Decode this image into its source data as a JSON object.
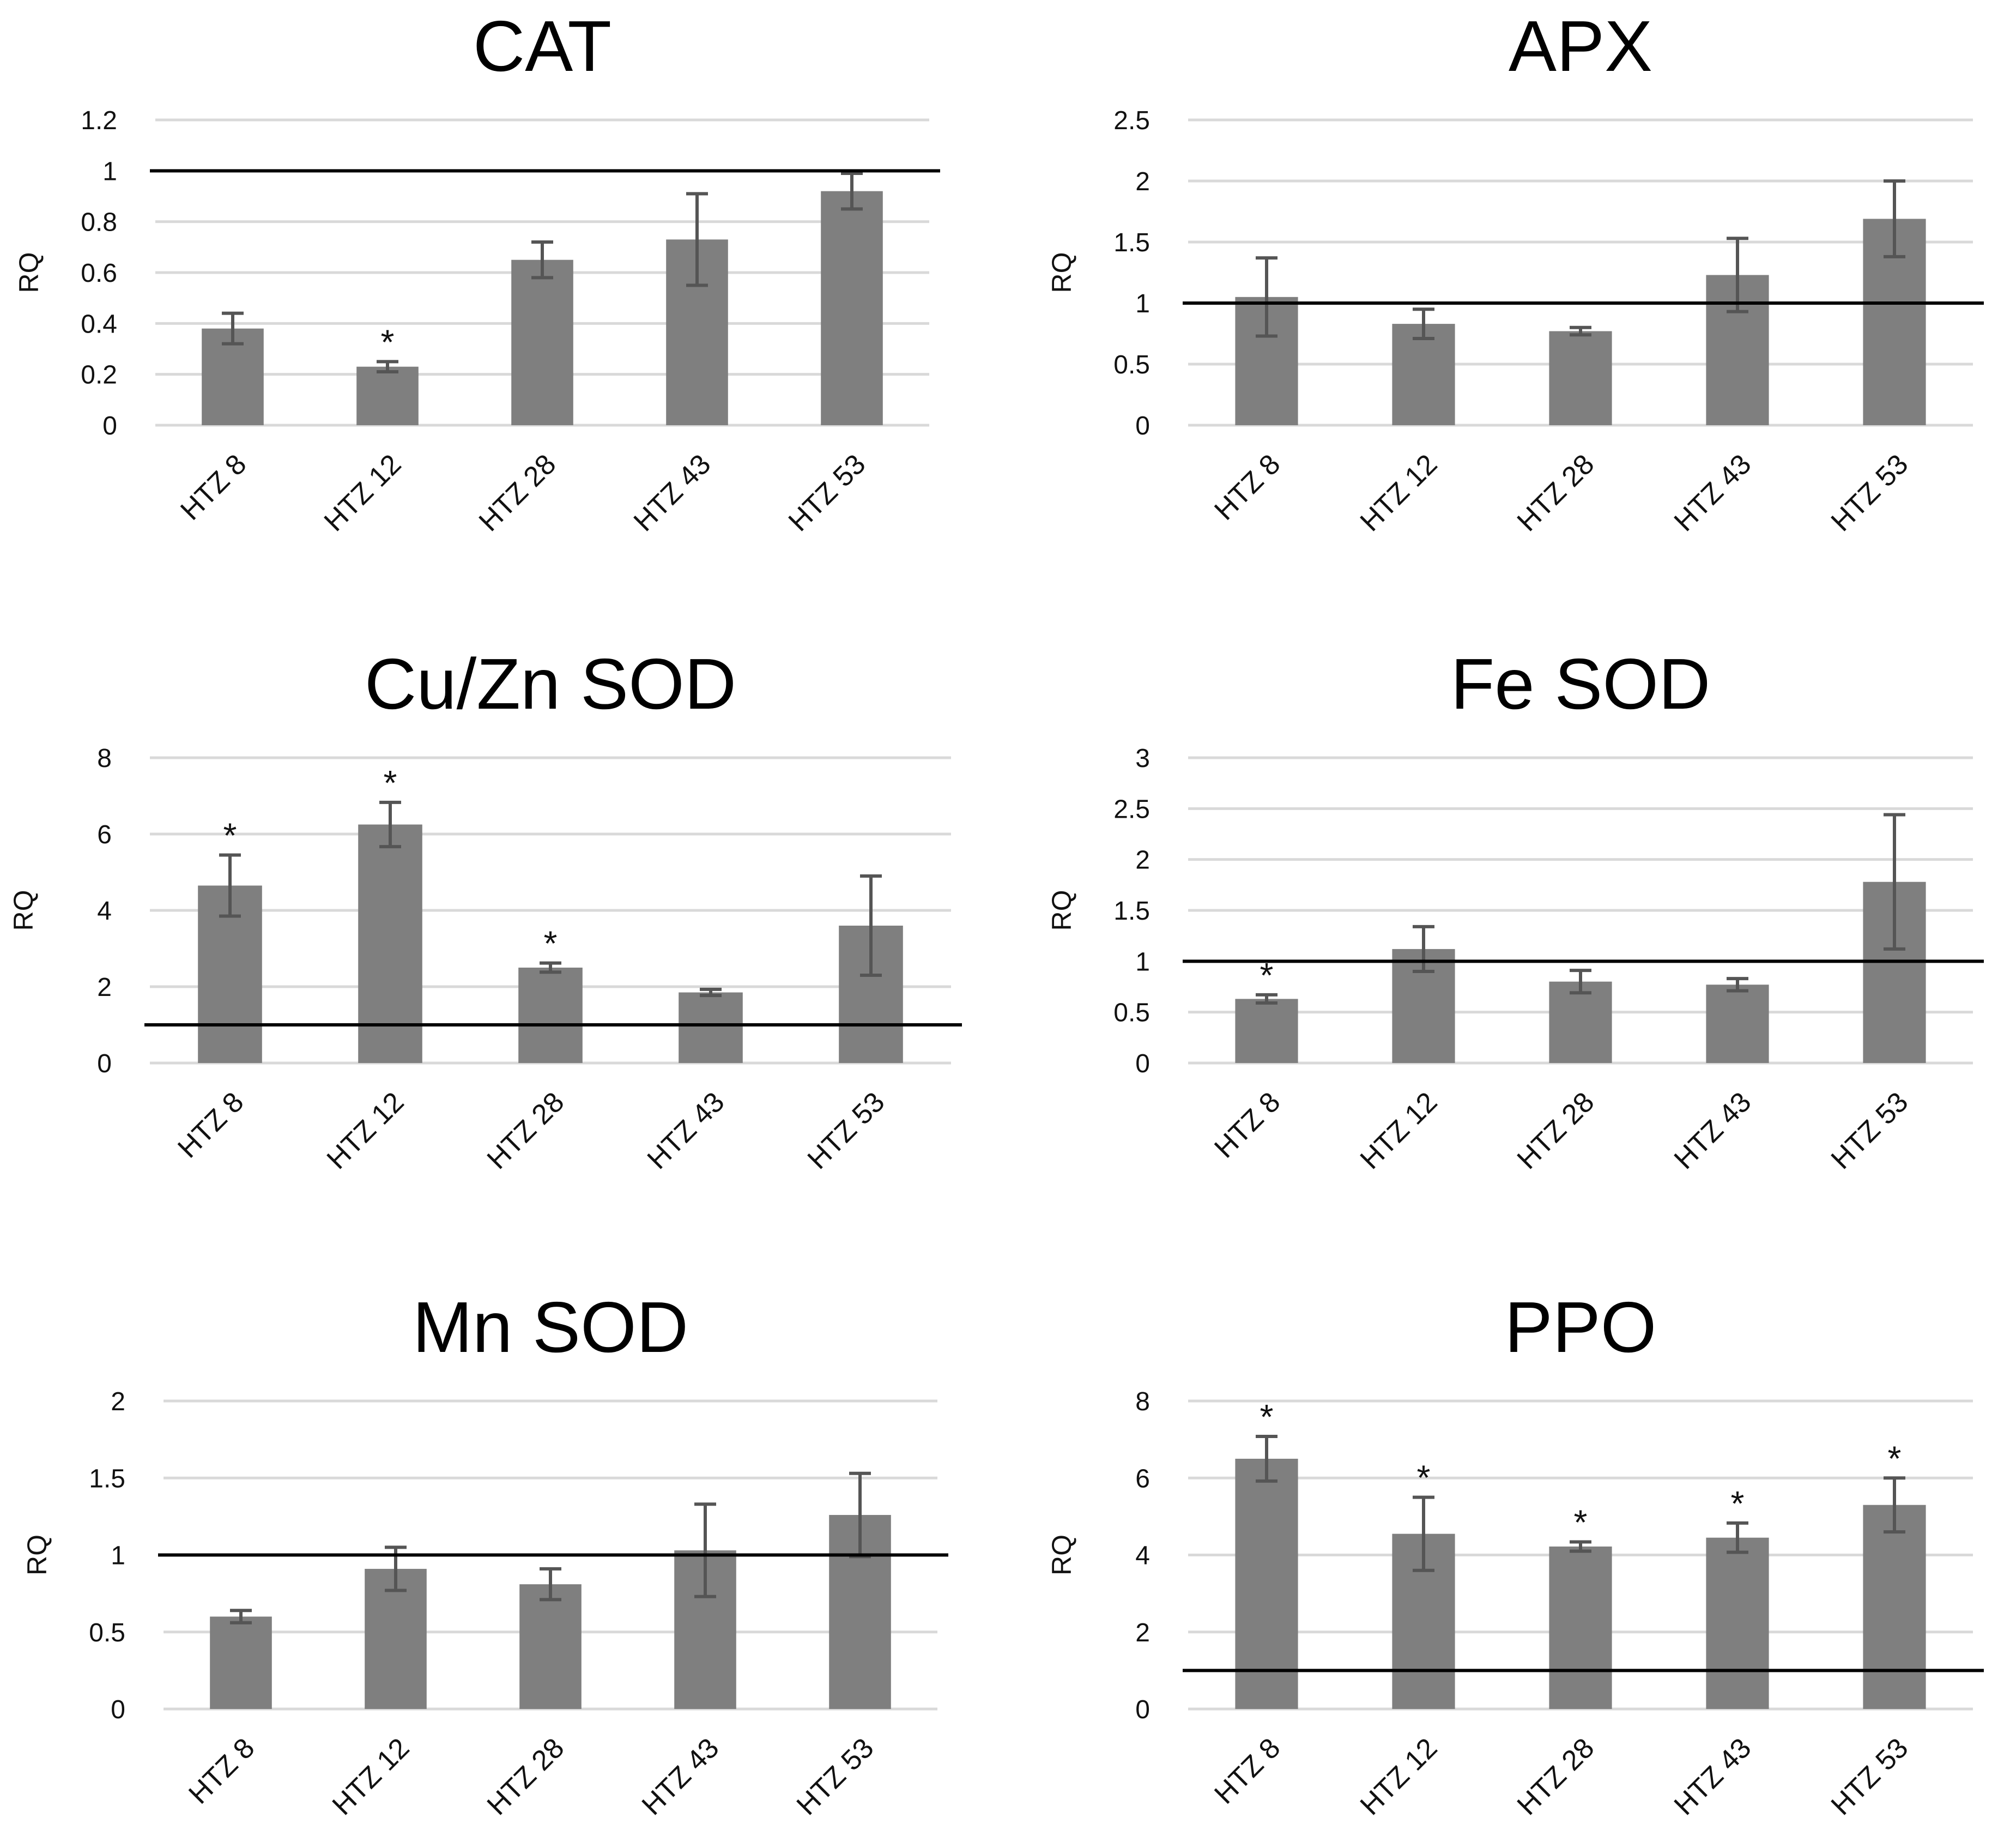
{
  "colors": {
    "bar": "#7f7f7f",
    "error": "#555555",
    "grid": "#d9d9d9",
    "ref": "#000000"
  },
  "chart_data": [
    {
      "type": "bar",
      "title": "CAT",
      "ylabel": "RQ",
      "xlabel": "",
      "categories": [
        "HTZ 8",
        "HTZ 12",
        "HTZ 28",
        "HTZ 43",
        "HTZ 53"
      ],
      "values": [
        0.38,
        0.23,
        0.65,
        0.73,
        0.92
      ],
      "errors": [
        0.06,
        0.02,
        0.07,
        0.18,
        0.07
      ],
      "significant": [
        false,
        true,
        false,
        false,
        false
      ],
      "ylim": [
        0,
        1.2
      ],
      "yticks": [
        0,
        0.2,
        0.4,
        0.6,
        0.8,
        1,
        1.2
      ],
      "ytick_labels": [
        "0",
        "0.2",
        "0.4",
        "0.6",
        "0.8",
        "1",
        "1.2"
      ],
      "reference_line": 1
    },
    {
      "type": "bar",
      "title": "APX",
      "ylabel": "RQ",
      "xlabel": "",
      "categories": [
        "HTZ 8",
        "HTZ 12",
        "HTZ 28",
        "HTZ 43",
        "HTZ 53"
      ],
      "values": [
        1.05,
        0.83,
        0.77,
        1.23,
        1.69
      ],
      "errors": [
        0.32,
        0.12,
        0.03,
        0.3,
        0.31
      ],
      "significant": [
        false,
        false,
        false,
        false,
        false
      ],
      "ylim": [
        0,
        2.5
      ],
      "yticks": [
        0,
        0.5,
        1,
        1.5,
        2,
        2.5
      ],
      "ytick_labels": [
        "0",
        "0.5",
        "1",
        "1.5",
        "2",
        "2.5"
      ],
      "reference_line": 1
    },
    {
      "type": "bar",
      "title": "Cu/Zn SOD",
      "ylabel": "RQ",
      "xlabel": "",
      "categories": [
        "HTZ 8",
        "HTZ 12",
        "HTZ 28",
        "HTZ 43",
        "HTZ 53"
      ],
      "values": [
        4.65,
        6.25,
        2.5,
        1.85,
        3.6
      ],
      "errors": [
        0.8,
        0.58,
        0.12,
        0.08,
        1.3
      ],
      "significant": [
        true,
        true,
        true,
        false,
        false
      ],
      "ylim": [
        0,
        8
      ],
      "yticks": [
        0,
        2,
        4,
        6,
        8
      ],
      "ytick_labels": [
        "0",
        "2",
        "4",
        "6",
        "8"
      ],
      "reference_line": 1
    },
    {
      "type": "bar",
      "title": "Fe SOD",
      "ylabel": "RQ",
      "xlabel": "",
      "categories": [
        "HTZ 8",
        "HTZ 12",
        "HTZ 28",
        "HTZ 43",
        "HTZ 53"
      ],
      "values": [
        0.63,
        1.12,
        0.8,
        0.77,
        1.78
      ],
      "errors": [
        0.04,
        0.22,
        0.11,
        0.06,
        0.66
      ],
      "significant": [
        true,
        false,
        false,
        false,
        false
      ],
      "ylim": [
        0,
        3
      ],
      "yticks": [
        0,
        0.5,
        1,
        1.5,
        2,
        2.5,
        3
      ],
      "ytick_labels": [
        "0",
        "0.5",
        "1",
        "1.5",
        "2",
        "2.5",
        "3"
      ],
      "reference_line": 1
    },
    {
      "type": "bar",
      "title": "Mn SOD",
      "ylabel": "RQ",
      "xlabel": "",
      "categories": [
        "HTZ 8",
        "HTZ 12",
        "HTZ 28",
        "HTZ 43",
        "HTZ 53"
      ],
      "values": [
        0.6,
        0.91,
        0.81,
        1.03,
        1.26
      ],
      "errors": [
        0.04,
        0.14,
        0.1,
        0.3,
        0.27
      ],
      "significant": [
        false,
        false,
        false,
        false,
        false
      ],
      "ylim": [
        0,
        2
      ],
      "yticks": [
        0,
        0.5,
        1,
        1.5,
        2
      ],
      "ytick_labels": [
        "0",
        "0.5",
        "1",
        "1.5",
        "2"
      ],
      "reference_line": 1
    },
    {
      "type": "bar",
      "title": "PPO",
      "ylabel": "RQ",
      "xlabel": "",
      "categories": [
        "HTZ 8",
        "HTZ 12",
        "HTZ 28",
        "HTZ 43",
        "HTZ 53"
      ],
      "values": [
        6.5,
        4.55,
        4.22,
        4.45,
        5.3
      ],
      "errors": [
        0.58,
        0.95,
        0.12,
        0.38,
        0.7
      ],
      "significant": [
        true,
        true,
        true,
        true,
        true
      ],
      "ylim": [
        0,
        8
      ],
      "yticks": [
        0,
        2,
        4,
        6,
        8
      ],
      "ytick_labels": [
        "0",
        "2",
        "4",
        "6",
        "8"
      ],
      "reference_line": 1
    }
  ],
  "significance_marker": "*"
}
